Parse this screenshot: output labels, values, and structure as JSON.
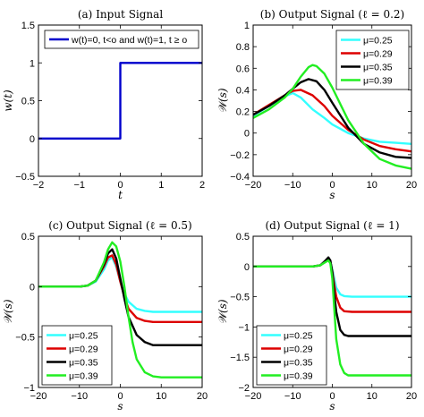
{
  "chart_data": [
    {
      "type": "line",
      "title": "(a) Input Signal",
      "xlabel": "t",
      "ylabel": "w(t)",
      "xlim": [
        -2,
        2
      ],
      "ylim": [
        -0.5,
        1.5
      ],
      "xticks": [
        -2,
        -1,
        0,
        1,
        2
      ],
      "yticks": [
        -0.5,
        0,
        0.5,
        1,
        1.5
      ],
      "grid": false,
      "legend_position": "top",
      "series": [
        {
          "name": "w(t)=0, t<o and w(t)=1, t ≥ o",
          "color": "#0000cc",
          "x": [
            -2,
            0,
            0,
            2
          ],
          "y": [
            0,
            0,
            1,
            1
          ]
        }
      ]
    },
    {
      "type": "line",
      "title": "(b) Output Signal (ℓ = 0.2)",
      "xlabel": "s",
      "ylabel": "𝒲(s)",
      "xlim": [
        -20,
        20
      ],
      "ylim": [
        -0.4,
        1
      ],
      "xticks": [
        -20,
        -10,
        0,
        10,
        20
      ],
      "yticks": [
        -0.4,
        -0.2,
        0,
        0.2,
        0.4,
        0.6,
        0.8,
        1
      ],
      "grid": false,
      "legend_position": "top-right",
      "series": [
        {
          "name": "μ=0.25",
          "color": "#33ffff",
          "x": [
            -20,
            -16,
            -12,
            -10,
            -8,
            -5,
            -2,
            0,
            4,
            8,
            12,
            16,
            20
          ],
          "y": [
            0.16,
            0.25,
            0.34,
            0.37,
            0.33,
            0.22,
            0.14,
            0.08,
            0.0,
            -0.05,
            -0.08,
            -0.09,
            -0.1
          ]
        },
        {
          "name": "μ=0.29",
          "color": "#dd0000",
          "x": [
            -20,
            -16,
            -12,
            -10,
            -8,
            -5,
            -2,
            0,
            4,
            8,
            12,
            16,
            20
          ],
          "y": [
            0.17,
            0.26,
            0.35,
            0.39,
            0.4,
            0.35,
            0.25,
            0.16,
            0.03,
            -0.06,
            -0.12,
            -0.15,
            -0.17
          ]
        },
        {
          "name": "μ=0.35",
          "color": "#000000",
          "x": [
            -20,
            -16,
            -12,
            -10,
            -8,
            -6,
            -4,
            -2,
            0,
            4,
            8,
            12,
            16,
            20
          ],
          "y": [
            0.17,
            0.25,
            0.35,
            0.41,
            0.47,
            0.5,
            0.48,
            0.4,
            0.28,
            0.05,
            -0.1,
            -0.18,
            -0.22,
            -0.23
          ]
        },
        {
          "name": "μ=0.39",
          "color": "#22ee22",
          "x": [
            -20,
            -16,
            -12,
            -10,
            -8,
            -6,
            -5,
            -4,
            -2,
            0,
            4,
            8,
            12,
            16,
            20
          ],
          "y": [
            0.14,
            0.22,
            0.33,
            0.41,
            0.52,
            0.61,
            0.63,
            0.62,
            0.55,
            0.42,
            0.12,
            -0.1,
            -0.24,
            -0.3,
            -0.33
          ]
        }
      ]
    },
    {
      "type": "line",
      "title": "(c) Output Signal (ℓ = 0.5)",
      "xlabel": "s",
      "ylabel": "𝒲(s)",
      "xlim": [
        -20,
        20
      ],
      "ylim": [
        -1,
        0.5
      ],
      "xticks": [
        -20,
        -10,
        0,
        10,
        20
      ],
      "yticks": [
        -1,
        -0.5,
        0,
        0.5
      ],
      "grid": false,
      "legend_position": "bottom-left",
      "series": [
        {
          "name": "μ=0.25",
          "color": "#33ffff",
          "x": [
            -20,
            -10,
            -8,
            -6,
            -4,
            -3,
            -2,
            -1,
            0,
            1,
            2,
            4,
            6,
            8,
            10,
            20
          ],
          "y": [
            0,
            0,
            0.01,
            0.05,
            0.17,
            0.26,
            0.29,
            0.2,
            0.05,
            -0.07,
            -0.15,
            -0.22,
            -0.24,
            -0.25,
            -0.25,
            -0.25
          ]
        },
        {
          "name": "μ=0.29",
          "color": "#dd0000",
          "x": [
            -20,
            -10,
            -8,
            -6,
            -4,
            -3,
            -2,
            -1,
            0,
            1,
            2,
            4,
            6,
            8,
            10,
            20
          ],
          "y": [
            0,
            0,
            0.01,
            0.06,
            0.2,
            0.29,
            0.31,
            0.22,
            0.05,
            -0.1,
            -0.22,
            -0.31,
            -0.34,
            -0.35,
            -0.35,
            -0.35
          ]
        },
        {
          "name": "μ=0.35",
          "color": "#000000",
          "x": [
            -20,
            -10,
            -8,
            -6,
            -4,
            -3,
            -2,
            -1,
            0,
            1,
            2,
            4,
            6,
            8,
            10,
            20
          ],
          "y": [
            0,
            0,
            0.01,
            0.06,
            0.22,
            0.33,
            0.37,
            0.28,
            0.08,
            -0.12,
            -0.3,
            -0.48,
            -0.55,
            -0.58,
            -0.58,
            -0.58
          ]
        },
        {
          "name": "μ=0.39",
          "color": "#22ee22",
          "x": [
            -20,
            -10,
            -8,
            -6,
            -4,
            -3,
            -2,
            -1,
            0,
            1,
            2,
            3,
            4,
            6,
            8,
            10,
            20
          ],
          "y": [
            0,
            0,
            0.01,
            0.06,
            0.24,
            0.37,
            0.44,
            0.4,
            0.25,
            0.0,
            -0.3,
            -0.55,
            -0.72,
            -0.85,
            -0.89,
            -0.9,
            -0.9
          ]
        }
      ]
    },
    {
      "type": "line",
      "title": "(d) Output Signal (ℓ = 1)",
      "xlabel": "s",
      "ylabel": "𝒲(s)",
      "xlim": [
        -20,
        20
      ],
      "ylim": [
        -2,
        0.5
      ],
      "xticks": [
        -20,
        -10,
        0,
        10,
        20
      ],
      "yticks": [
        -2,
        -1.5,
        -1,
        -0.5,
        0,
        0.5
      ],
      "grid": false,
      "legend_position": "bottom-left",
      "series": [
        {
          "name": "μ=0.25",
          "color": "#33ffff",
          "x": [
            -20,
            -5,
            -3,
            -2,
            -1,
            -0.5,
            0,
            0.5,
            1,
            2,
            3,
            5,
            20
          ],
          "y": [
            0,
            0,
            0.02,
            0.07,
            0.12,
            0.08,
            -0.05,
            -0.2,
            -0.35,
            -0.46,
            -0.49,
            -0.5,
            -0.5
          ]
        },
        {
          "name": "μ=0.29",
          "color": "#dd0000",
          "x": [
            -20,
            -5,
            -3,
            -2,
            -1,
            -0.5,
            0,
            0.5,
            1,
            2,
            3,
            5,
            20
          ],
          "y": [
            0,
            0,
            0.02,
            0.07,
            0.13,
            0.08,
            -0.08,
            -0.3,
            -0.5,
            -0.68,
            -0.74,
            -0.75,
            -0.75
          ]
        },
        {
          "name": "μ=0.35",
          "color": "#000000",
          "x": [
            -20,
            -5,
            -3,
            -2,
            -1,
            -0.5,
            0,
            0.5,
            1,
            2,
            3,
            4,
            6,
            20
          ],
          "y": [
            0,
            0,
            0.02,
            0.08,
            0.15,
            0.1,
            -0.1,
            -0.45,
            -0.75,
            -1.05,
            -1.13,
            -1.15,
            -1.15,
            -1.15
          ]
        },
        {
          "name": "μ=0.39",
          "color": "#22ee22",
          "x": [
            -20,
            -5,
            -3,
            -2,
            -1,
            -0.5,
            0,
            0.5,
            1,
            2,
            3,
            4,
            6,
            20
          ],
          "y": [
            0,
            0,
            0.02,
            0.06,
            0.1,
            0.05,
            -0.2,
            -0.7,
            -1.2,
            -1.62,
            -1.76,
            -1.8,
            -1.8,
            -1.8
          ]
        }
      ]
    }
  ]
}
